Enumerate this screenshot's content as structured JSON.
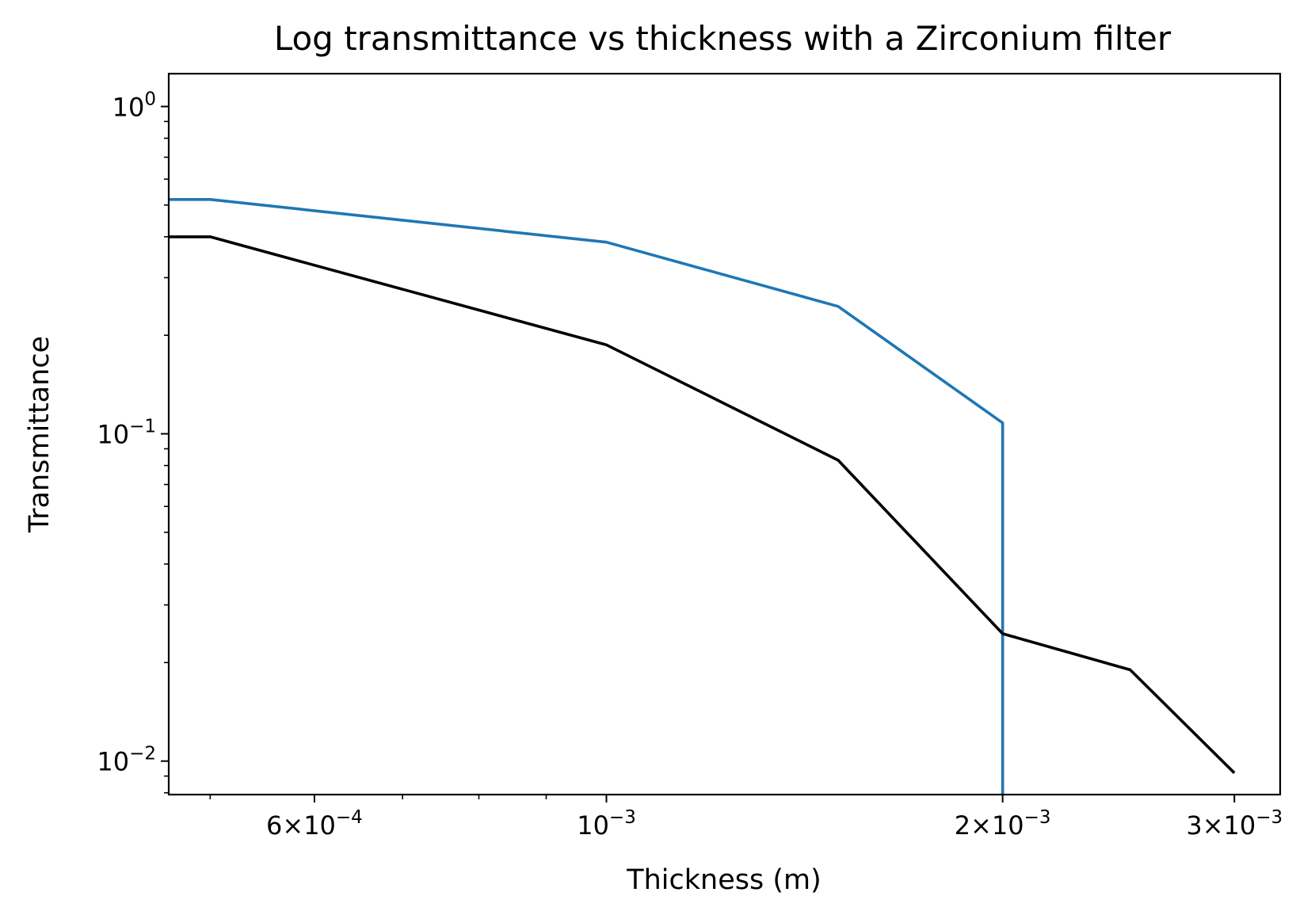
{
  "chart_data": {
    "type": "line",
    "title": "Log transmittance vs thickness with a Zirconium filter",
    "xlabel": "Thickness (m)",
    "ylabel": "Transmittance",
    "xscale": "log",
    "yscale": "log",
    "xlim": [
      0.000465,
      0.00325
    ],
    "ylim": [
      0.0079,
      1.26
    ],
    "grid": false,
    "x_ticks": [
      {
        "value": 0.0006,
        "mantissa": "6",
        "exponent": "−4"
      },
      {
        "value": 0.001,
        "mantissa": "",
        "exponent": "−3"
      },
      {
        "value": 0.002,
        "mantissa": "2",
        "exponent": "−3"
      },
      {
        "value": 0.003,
        "mantissa": "3",
        "exponent": "−3"
      }
    ],
    "y_ticks": [
      {
        "value": 1,
        "exponent": "0"
      },
      {
        "value": 0.1,
        "exponent": "−1"
      },
      {
        "value": 0.01,
        "exponent": "−2"
      }
    ],
    "series": [
      {
        "color": "#1f77b4",
        "x": [
          0.000465,
          0.0005,
          0.001,
          0.0015,
          0.002,
          0.002
        ],
        "y": [
          0.52,
          0.52,
          0.385,
          0.245,
          0.108,
          0.0079
        ]
      },
      {
        "color": "#000000",
        "x": [
          0.000465,
          0.0005,
          0.001,
          0.0015,
          0.002,
          0.0025,
          0.003
        ],
        "y": [
          0.4,
          0.4,
          0.187,
          0.083,
          0.0245,
          0.019,
          0.0092
        ]
      }
    ]
  }
}
